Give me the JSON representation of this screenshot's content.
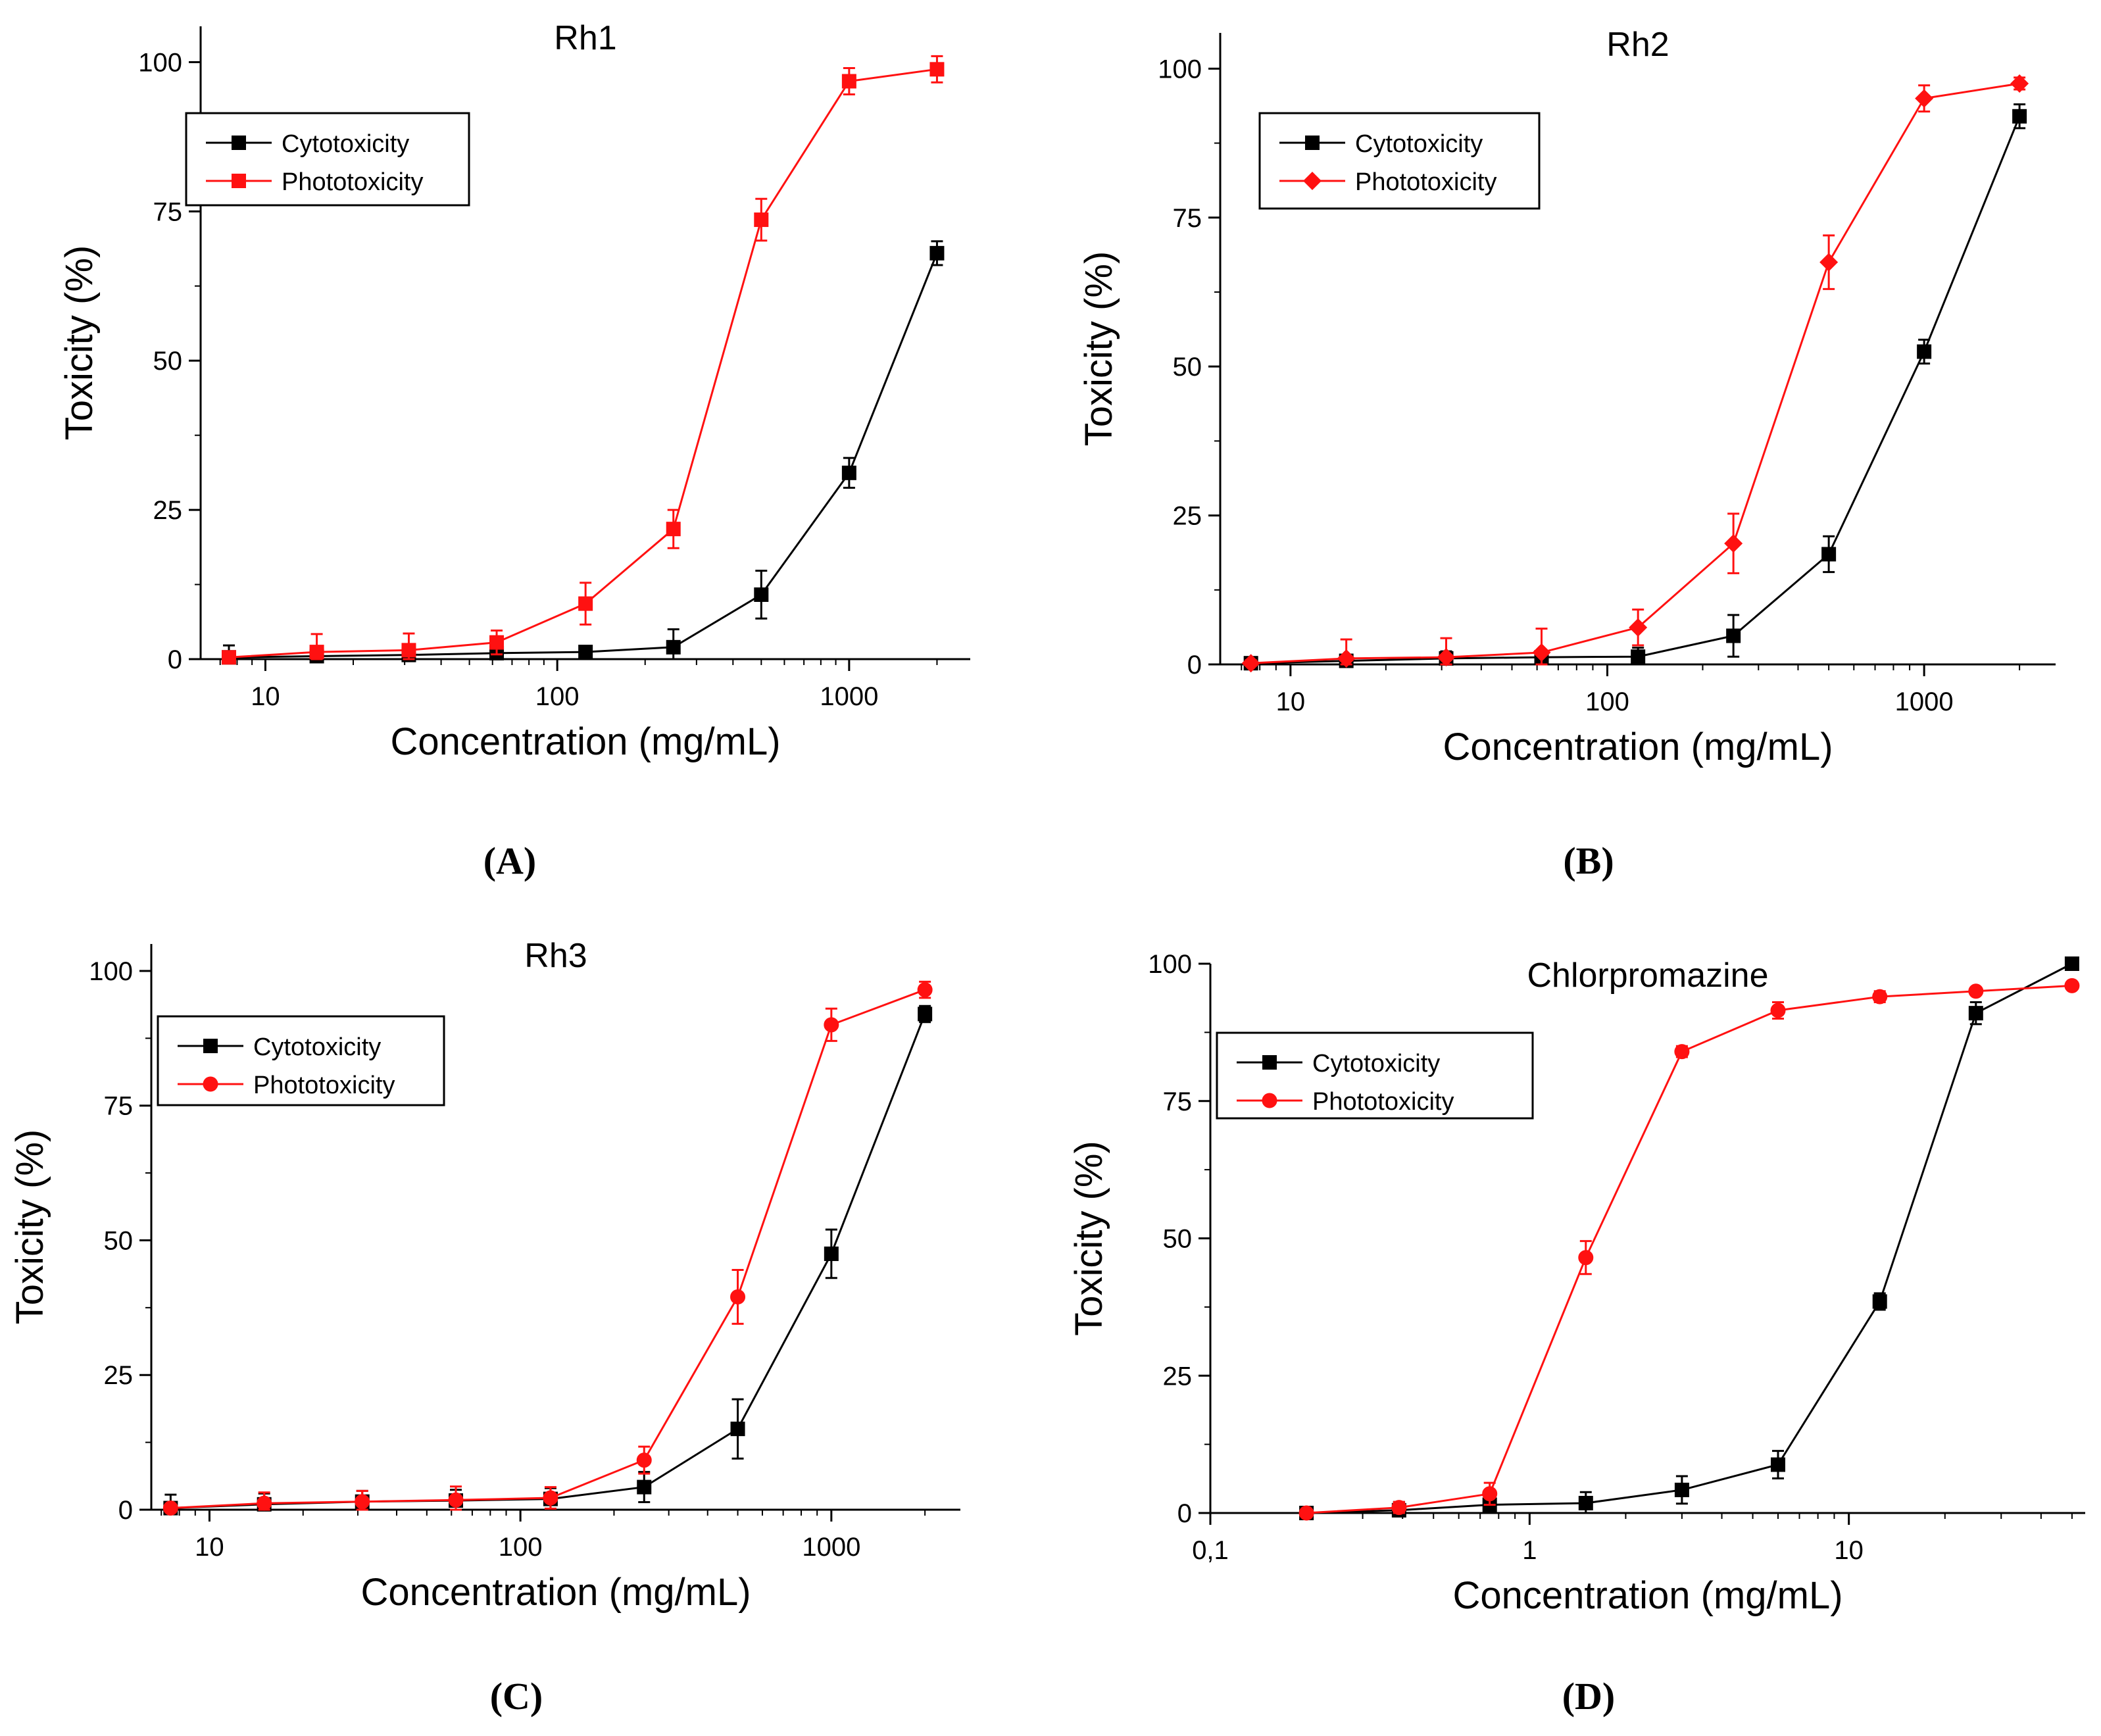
{
  "figure": {
    "panel_labels": [
      "(A)",
      "(B)",
      "(C)",
      "(D)"
    ]
  },
  "style": {
    "cytotoxicity_color": "#000000",
    "phototoxicity_color": "#ff1111",
    "axis_color": "#000000"
  },
  "chart_data": [
    {
      "type": "line",
      "title": "Rh1",
      "xlabel": "Concentration (mg/mL)",
      "ylabel": "Toxicity (%)",
      "xscale": "log",
      "xlim": [
        6,
        2600
      ],
      "ylim": [
        0,
        106
      ],
      "xticks": [
        10,
        100,
        1000
      ],
      "xtick_labels": [
        "10",
        "100",
        "1000"
      ],
      "yticks": [
        0,
        25,
        50,
        75,
        100
      ],
      "ytick_labels": [
        "0",
        "25",
        "50",
        "75",
        "100"
      ],
      "legend": "upper-left",
      "series": [
        {
          "name": "Cytotoxicity",
          "marker": "square",
          "x": [
            7.5,
            15,
            31,
            62,
            125,
            250,
            500,
            1000,
            2000
          ],
          "y": [
            0.3,
            0.5,
            0.7,
            1.0,
            1.2,
            2.0,
            10.8,
            31.2,
            68.0
          ],
          "err": [
            2.0,
            0.8,
            0.8,
            0.8,
            1.0,
            3.0,
            4.0,
            2.5,
            2.0
          ]
        },
        {
          "name": "Phototoxicity",
          "marker": "square",
          "x": [
            7.5,
            15,
            31,
            62,
            125,
            250,
            500,
            1000,
            2000
          ],
          "y": [
            0.3,
            1.2,
            1.5,
            2.8,
            9.3,
            21.8,
            73.6,
            96.8,
            98.8
          ],
          "err": [
            0.5,
            3.0,
            2.8,
            2.0,
            3.5,
            3.2,
            3.5,
            2.2,
            2.2
          ]
        }
      ]
    },
    {
      "type": "line",
      "title": "Rh2",
      "xlabel": "Concentration (mg/mL)",
      "ylabel": "Toxicity (%)",
      "xscale": "log",
      "xlim": [
        6,
        2600
      ],
      "ylim": [
        0,
        106
      ],
      "xticks": [
        10,
        100,
        1000
      ],
      "xtick_labels": [
        "10",
        "100",
        "1000"
      ],
      "yticks": [
        0,
        25,
        50,
        75,
        100
      ],
      "ytick_labels": [
        "0",
        "25",
        "50",
        "75",
        "100"
      ],
      "legend": "upper-left",
      "series": [
        {
          "name": "Cytotoxicity",
          "marker": "square",
          "x": [
            7.5,
            15,
            31,
            62,
            125,
            250,
            500,
            1000,
            2000
          ],
          "y": [
            0.2,
            0.6,
            1.0,
            1.2,
            1.3,
            4.8,
            18.5,
            52.5,
            92.0
          ],
          "err": [
            0.5,
            1.0,
            1.2,
            1.0,
            1.5,
            3.5,
            3.0,
            2.0,
            2.0
          ]
        },
        {
          "name": "Phototoxicity",
          "marker": "diamond",
          "x": [
            7.5,
            15,
            31,
            62,
            125,
            250,
            500,
            1000,
            2000
          ],
          "y": [
            0.2,
            1.0,
            1.2,
            2.0,
            6.2,
            20.3,
            67.5,
            95.0,
            97.5
          ],
          "err": [
            0.5,
            3.2,
            3.2,
            4.0,
            3.0,
            5.0,
            4.5,
            2.2,
            1.0
          ]
        }
      ]
    },
    {
      "type": "line",
      "title": "Rh3",
      "xlabel": "Concentration (mg/mL)",
      "ylabel": "Toxicity (%)",
      "xscale": "log",
      "xlim": [
        6.5,
        2600
      ],
      "ylim": [
        0,
        105
      ],
      "xticks": [
        10,
        100,
        1000
      ],
      "xtick_labels": [
        "10",
        "100",
        "1000"
      ],
      "yticks": [
        0,
        25,
        50,
        75,
        100
      ],
      "ytick_labels": [
        "0",
        "25",
        "50",
        "75",
        "100"
      ],
      "legend": "upper-left",
      "series": [
        {
          "name": "Cytotoxicity",
          "marker": "square",
          "x": [
            7.5,
            15,
            31,
            62,
            125,
            250,
            500,
            1000,
            2000
          ],
          "y": [
            0.3,
            1.0,
            1.5,
            1.7,
            2.0,
            4.2,
            15.0,
            47.5,
            92.0
          ],
          "err": [
            2.5,
            2.0,
            2.0,
            2.0,
            2.0,
            2.8,
            5.5,
            4.5,
            1.5
          ]
        },
        {
          "name": "Phototoxicity",
          "marker": "circle",
          "x": [
            7.5,
            15,
            31,
            62,
            125,
            250,
            500,
            1000,
            2000
          ],
          "y": [
            0.3,
            1.2,
            1.5,
            1.8,
            2.2,
            9.2,
            39.5,
            90.0,
            96.5
          ],
          "err": [
            0.5,
            2.0,
            2.0,
            2.5,
            2.0,
            2.5,
            5.0,
            3.0,
            1.5
          ]
        }
      ]
    },
    {
      "type": "line",
      "title": "Chlorpromazine",
      "xlabel": "Concentration (mg/mL)",
      "ylabel": "Toxicity (%)",
      "xscale": "log",
      "xlim": [
        0.1,
        55
      ],
      "ylim": [
        0,
        100
      ],
      "xticks": [
        0.1,
        1,
        10
      ],
      "xtick_labels": [
        "0,1",
        "1",
        "10"
      ],
      "yticks": [
        0,
        25,
        50,
        75,
        100
      ],
      "ytick_labels": [
        "0",
        "25",
        "50",
        "75",
        "100"
      ],
      "legend": "upper-left",
      "series": [
        {
          "name": "Cytotoxicity",
          "marker": "square",
          "x": [
            0.2,
            0.39,
            0.75,
            1.5,
            3,
            6,
            12.5,
            25,
            50
          ],
          "y": [
            0,
            0.5,
            1.5,
            1.8,
            4.2,
            8.8,
            38.5,
            91.0,
            100.0
          ],
          "err": [
            0.5,
            1.5,
            2.0,
            2.0,
            2.5,
            2.5,
            1.5,
            2.0,
            0.5
          ]
        },
        {
          "name": "Phototoxicity",
          "marker": "circle",
          "x": [
            0.2,
            0.39,
            0.75,
            1.5,
            3,
            6,
            12.5,
            25,
            50
          ],
          "y": [
            0,
            1.0,
            3.5,
            46.5,
            84.0,
            91.5,
            94.0,
            95.0,
            96.0
          ],
          "err": [
            0.5,
            1.0,
            2.0,
            3.0,
            1.0,
            1.5,
            1.0,
            0.5,
            0.5
          ]
        }
      ]
    }
  ]
}
